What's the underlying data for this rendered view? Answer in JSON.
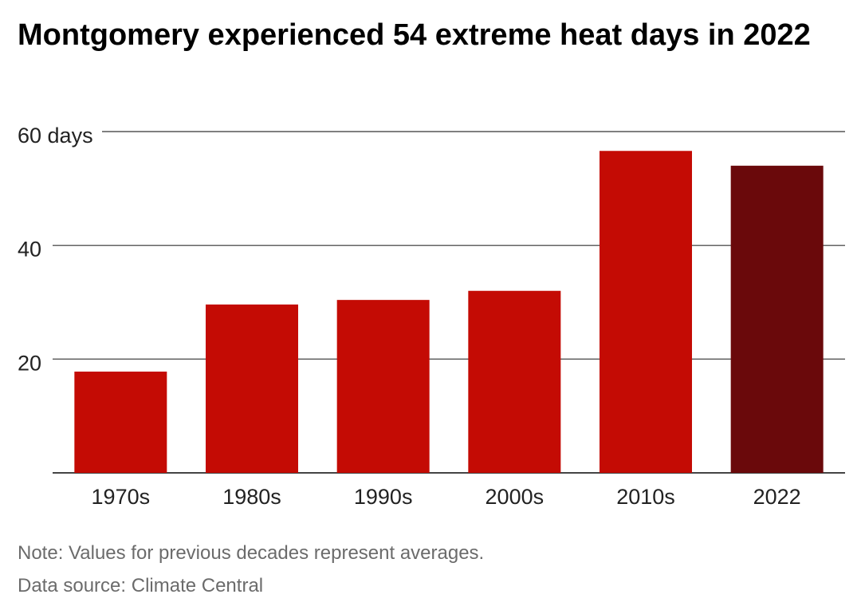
{
  "title": "Montgomery experienced 54 extreme heat days in 2022",
  "note": "Note: Values for previous decades represent averages.",
  "source": "Data source: Climate Central",
  "colors": {
    "bar": "#c40b04",
    "highlight": "#6a090b",
    "grid": "#555555",
    "axis": "#444444",
    "text": "#222222"
  },
  "chart_data": {
    "type": "bar",
    "categories": [
      "1970s",
      "1980s",
      "1990s",
      "2000s",
      "2010s",
      "2022"
    ],
    "values": [
      17.8,
      29.6,
      30.4,
      32.0,
      56.6,
      54
    ],
    "highlight_category": "2022",
    "ylim": [
      0,
      60
    ],
    "yticks": [
      {
        "value": 20,
        "label": "20"
      },
      {
        "value": 40,
        "label": "40"
      },
      {
        "value": 60,
        "label": "60 days"
      }
    ],
    "grid": true,
    "title": "Montgomery experienced 54 extreme heat days in 2022"
  }
}
